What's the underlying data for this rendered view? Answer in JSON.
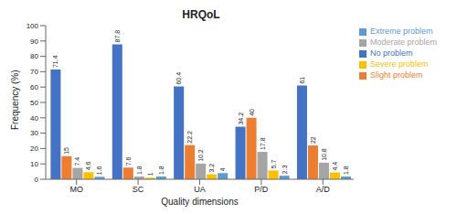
{
  "chart_data": {
    "type": "bar",
    "title": "HRQoL",
    "x_label": "Quality dimensions",
    "y_label": "Frequency (%)",
    "categories": [
      "MO",
      "SC",
      "UA",
      "P/D",
      "A/D"
    ],
    "series": [
      {
        "name": "No problem",
        "color": "#4472c4",
        "values": [
          71.4,
          87.8,
          60.4,
          34.2,
          61
        ]
      },
      {
        "name": "Slight problem",
        "color": "#ed7d31",
        "values": [
          15,
          7.6,
          22.2,
          40,
          22
        ]
      },
      {
        "name": "Moderate problem",
        "color": "#a5a5a5",
        "values": [
          7.4,
          1.8,
          10.2,
          17.8,
          10.8
        ]
      },
      {
        "name": "Severe problem",
        "color": "#ffc000",
        "values": [
          4.6,
          1,
          3.2,
          5.7,
          4.4
        ]
      },
      {
        "name": "Extreme problem",
        "color": "#5b9bd5",
        "values": [
          1.6,
          1.8,
          4,
          2.3,
          1.8
        ]
      }
    ],
    "ylim": [
      0,
      100
    ],
    "yticks": [
      0,
      10,
      20,
      30,
      40,
      50,
      60,
      70,
      80,
      90,
      100
    ],
    "grid": false,
    "legend": "upper right",
    "data_labels": true
  }
}
